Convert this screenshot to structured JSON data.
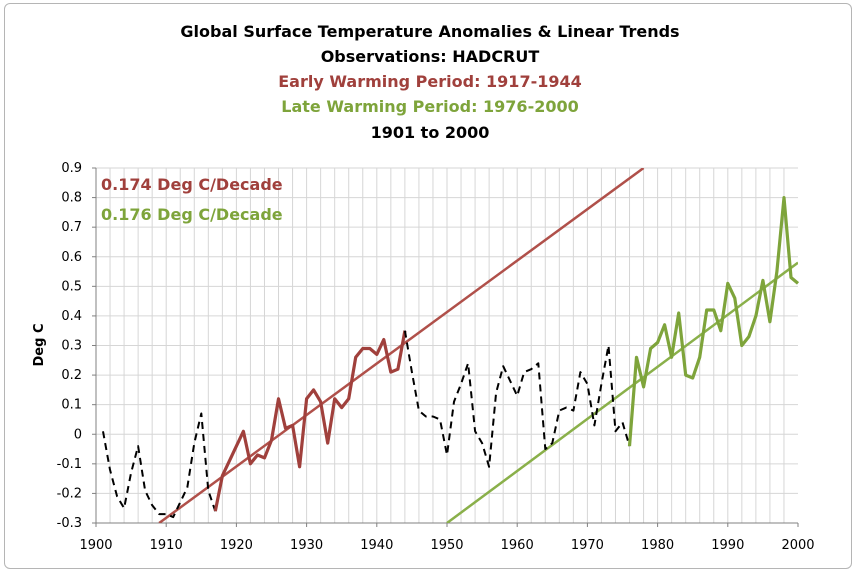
{
  "chart_data": {
    "type": "line",
    "title": "Global Surface Temperature Anomalies & Linear Trends",
    "subtitle": "Observations: HADCRUT",
    "early_period_label": "Early Warming Period: 1917-1944",
    "late_period_label": "Late Warming Period: 1976-2000",
    "range_label": "1901 to 2000",
    "xlabel": "",
    "ylabel": "Deg C",
    "xlim": [
      1900,
      2000
    ],
    "ylim": [
      -0.3,
      0.9
    ],
    "x_ticks": [
      "1900",
      "1910",
      "1920",
      "1930",
      "1940",
      "1950",
      "1960",
      "1970",
      "1980",
      "1990",
      "2000"
    ],
    "y_ticks": [
      "-0.3",
      "-0.2",
      "-0.1",
      "0",
      "0.1",
      "0.2",
      "0.3",
      "0.4",
      "0.5",
      "0.6",
      "0.7",
      "0.8",
      "0.9"
    ],
    "grid": true,
    "annotations": [
      {
        "text": "0.174 Deg C/Decade",
        "color": "#a0403c"
      },
      {
        "text": "0.176 Deg C/Decade",
        "color": "#7ea43b"
      }
    ],
    "colors": {
      "early": "#a0403c",
      "late": "#7ea43b",
      "anomaly": "#000000",
      "early_trend": "#b0504a",
      "late_trend": "#8ab04a"
    },
    "series": [
      {
        "style": "dashed",
        "color": "#000000",
        "x": [
          1901,
          1902,
          1903,
          1904,
          1905,
          1906,
          1907,
          1908,
          1909,
          1910,
          1911,
          1912,
          1913,
          1914,
          1915,
          1916,
          1917
        ],
        "values": [
          0.01,
          -0.12,
          -0.21,
          -0.25,
          -0.13,
          -0.04,
          -0.19,
          -0.24,
          -0.27,
          -0.27,
          -0.28,
          -0.23,
          -0.18,
          -0.03,
          0.07,
          -0.19,
          -0.26
        ]
      },
      {
        "style": "solid",
        "color": "#a0403c",
        "x": [
          1917,
          1918,
          1919,
          1920,
          1921,
          1922,
          1923,
          1924,
          1925,
          1926,
          1927,
          1928,
          1929,
          1930,
          1931,
          1932,
          1933,
          1934,
          1935,
          1936,
          1937,
          1938,
          1939,
          1940,
          1941,
          1942,
          1943,
          1944
        ],
        "values": [
          -0.26,
          -0.14,
          -0.09,
          -0.04,
          0.01,
          -0.1,
          -0.07,
          -0.08,
          -0.02,
          0.12,
          0.02,
          0.03,
          -0.11,
          0.12,
          0.15,
          0.11,
          -0.03,
          0.12,
          0.09,
          0.12,
          0.26,
          0.29,
          0.29,
          0.27,
          0.32,
          0.21,
          0.22,
          0.35
        ]
      },
      {
        "style": "dashed",
        "color": "#000000",
        "x": [
          1944,
          1945,
          1946,
          1947,
          1948,
          1949,
          1950,
          1951,
          1952,
          1953,
          1954,
          1955,
          1956,
          1957,
          1958,
          1959,
          1960,
          1961,
          1962,
          1963,
          1964,
          1965,
          1966,
          1967,
          1968,
          1969,
          1970,
          1971,
          1972,
          1973,
          1974,
          1975,
          1976
        ],
        "values": [
          0.35,
          0.21,
          0.08,
          0.06,
          0.06,
          0.05,
          -0.07,
          0.11,
          0.17,
          0.24,
          0.01,
          -0.03,
          -0.11,
          0.14,
          0.23,
          0.18,
          0.13,
          0.21,
          0.22,
          0.24,
          -0.05,
          -0.03,
          0.08,
          0.09,
          0.08,
          0.21,
          0.17,
          0.03,
          0.17,
          0.3,
          0.01,
          0.04,
          -0.04
        ]
      },
      {
        "style": "solid",
        "color": "#7ea43b",
        "x": [
          1976,
          1977,
          1978,
          1979,
          1980,
          1981,
          1982,
          1983,
          1984,
          1985,
          1986,
          1987,
          1988,
          1989,
          1990,
          1991,
          1992,
          1993,
          1994,
          1995,
          1996,
          1997,
          1998,
          1999,
          2000
        ],
        "values": [
          -0.04,
          0.26,
          0.16,
          0.29,
          0.31,
          0.37,
          0.26,
          0.41,
          0.2,
          0.19,
          0.26,
          0.42,
          0.42,
          0.35,
          0.51,
          0.46,
          0.3,
          0.33,
          0.4,
          0.52,
          0.38,
          0.55,
          0.8,
          0.53,
          0.51
        ]
      }
    ],
    "trends": [
      {
        "color": "#b0504a",
        "x": [
          1909,
          1978
        ],
        "values": [
          -0.3,
          0.9
        ]
      },
      {
        "color": "#8ab04a",
        "x": [
          1950,
          2000
        ],
        "values": [
          -0.3,
          0.58
        ]
      }
    ]
  }
}
